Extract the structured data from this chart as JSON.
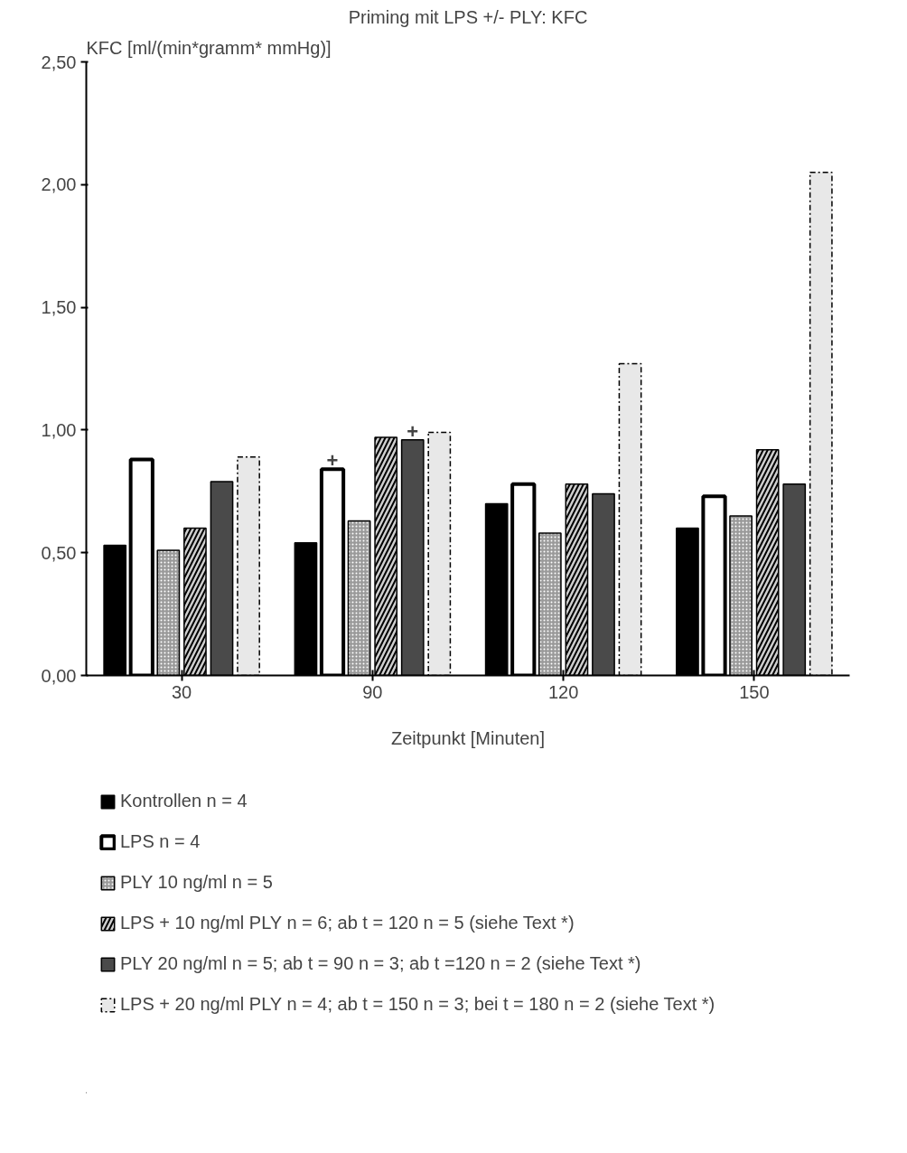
{
  "chart_data": {
    "type": "bar",
    "title": "Priming mit LPS +/- PLY: KFC",
    "ylabel": "KFC [ml/(min*gramm* mmHg)]",
    "xlabel": "Zeitpunkt [Minuten]",
    "categories": [
      "30",
      "90",
      "120",
      "150"
    ],
    "series": [
      {
        "name": "Kontrollen n = 4",
        "color": "#000000",
        "values": [
          0.53,
          0.54,
          0.7,
          0.6
        ]
      },
      {
        "name": "LPS n = 4",
        "color": "#ffffff",
        "values": [
          0.88,
          0.84,
          0.78,
          0.73
        ]
      },
      {
        "name": "PLY 10 ng/ml n = 5",
        "color": "#9a9a9a",
        "values": [
          0.51,
          0.63,
          0.58,
          0.65
        ]
      },
      {
        "name": "LPS + 10 ng/ml PLY n = 6; ab t = 120 n = 5 (siehe Text *)",
        "color": "#d0d0d0",
        "values": [
          0.6,
          0.97,
          0.78,
          0.92
        ]
      },
      {
        "name": "PLY 20 ng/ml n = 5; ab t = 90 n = 3; ab t =120 n = 2 (siehe Text *)",
        "color": "#4a4a4a",
        "values": [
          0.79,
          0.96,
          0.74,
          0.78
        ]
      },
      {
        "name": "LPS + 20 ng/ml PLY n = 4; ab t = 150 n = 3; bei t = 180 n = 2 (siehe Text *)",
        "color": "#e8e8e8",
        "values": [
          0.89,
          0.99,
          1.27,
          2.05
        ]
      }
    ],
    "ylim": [
      0,
      2.5
    ],
    "yticks": [
      {
        "value": 0,
        "label": "0,00"
      },
      {
        "value": 0.5,
        "label": "0,50"
      },
      {
        "value": 1,
        "label": "1,00"
      },
      {
        "value": 1.5,
        "label": "1,50"
      },
      {
        "value": 2,
        "label": "2,00"
      },
      {
        "value": 2.5,
        "label": "2,50"
      }
    ],
    "annotations": [
      {
        "text": "+",
        "x": "90",
        "y": 0.84
      },
      {
        "text": "+",
        "x": "90",
        "y": 0.96
      }
    ],
    "grid": false,
    "legend": "bottom"
  }
}
